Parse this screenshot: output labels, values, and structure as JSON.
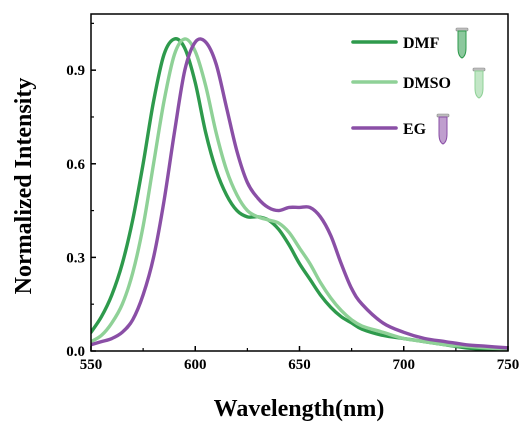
{
  "chart_data": {
    "type": "line",
    "xlabel": "Wavelength(nm)",
    "ylabel": "Normalized Intensity",
    "xlim": [
      550,
      750
    ],
    "ylim": [
      0.0,
      1.08
    ],
    "xticks": [
      550,
      600,
      650,
      700,
      750
    ],
    "xtick_labels": [
      "550",
      "600",
      "650",
      "700",
      "750"
    ],
    "yticks": [
      0.0,
      0.3,
      0.6,
      0.9
    ],
    "ytick_labels": [
      "0.0",
      "0.3",
      "0.6",
      "0.9"
    ],
    "grid": false,
    "legend_position": "top-right",
    "series": [
      {
        "name": "DMF",
        "color": "#2e9a4c",
        "icon": "tube-icon",
        "x": [
          550,
          555,
          560,
          565,
          570,
          575,
          580,
          585,
          590,
          595,
          600,
          605,
          610,
          615,
          620,
          625,
          630,
          635,
          640,
          645,
          650,
          655,
          660,
          665,
          670,
          675,
          680,
          690,
          700,
          710,
          720,
          730,
          740,
          750
        ],
        "y": [
          0.06,
          0.11,
          0.18,
          0.28,
          0.42,
          0.6,
          0.8,
          0.95,
          1.0,
          0.97,
          0.86,
          0.7,
          0.58,
          0.5,
          0.45,
          0.43,
          0.43,
          0.42,
          0.39,
          0.34,
          0.28,
          0.23,
          0.18,
          0.14,
          0.11,
          0.09,
          0.07,
          0.05,
          0.04,
          0.03,
          0.02,
          0.01,
          0.005,
          0.0
        ]
      },
      {
        "name": "DMSO",
        "color": "#8fd197",
        "icon": "tube-icon",
        "x": [
          550,
          555,
          560,
          565,
          570,
          575,
          580,
          585,
          590,
          595,
          600,
          605,
          610,
          615,
          620,
          625,
          630,
          635,
          640,
          645,
          650,
          655,
          660,
          665,
          670,
          675,
          680,
          690,
          700,
          710,
          720,
          730,
          740,
          750
        ],
        "y": [
          0.03,
          0.05,
          0.09,
          0.15,
          0.25,
          0.4,
          0.6,
          0.8,
          0.95,
          1.0,
          0.96,
          0.85,
          0.7,
          0.58,
          0.5,
          0.45,
          0.43,
          0.42,
          0.41,
          0.38,
          0.33,
          0.28,
          0.22,
          0.17,
          0.13,
          0.1,
          0.08,
          0.06,
          0.04,
          0.03,
          0.02,
          0.015,
          0.01,
          0.005
        ]
      },
      {
        "name": "EG",
        "color": "#8a4fa6",
        "icon": "tube-icon",
        "x": [
          550,
          555,
          560,
          565,
          570,
          575,
          580,
          585,
          590,
          595,
          600,
          605,
          610,
          615,
          620,
          625,
          630,
          635,
          640,
          645,
          650,
          655,
          660,
          665,
          670,
          675,
          680,
          690,
          700,
          710,
          720,
          730,
          740,
          750
        ],
        "y": [
          0.02,
          0.03,
          0.04,
          0.06,
          0.1,
          0.18,
          0.3,
          0.48,
          0.7,
          0.9,
          0.99,
          0.99,
          0.92,
          0.78,
          0.64,
          0.54,
          0.49,
          0.46,
          0.45,
          0.46,
          0.46,
          0.46,
          0.43,
          0.37,
          0.28,
          0.2,
          0.15,
          0.09,
          0.06,
          0.04,
          0.03,
          0.02,
          0.015,
          0.01
        ]
      }
    ]
  }
}
